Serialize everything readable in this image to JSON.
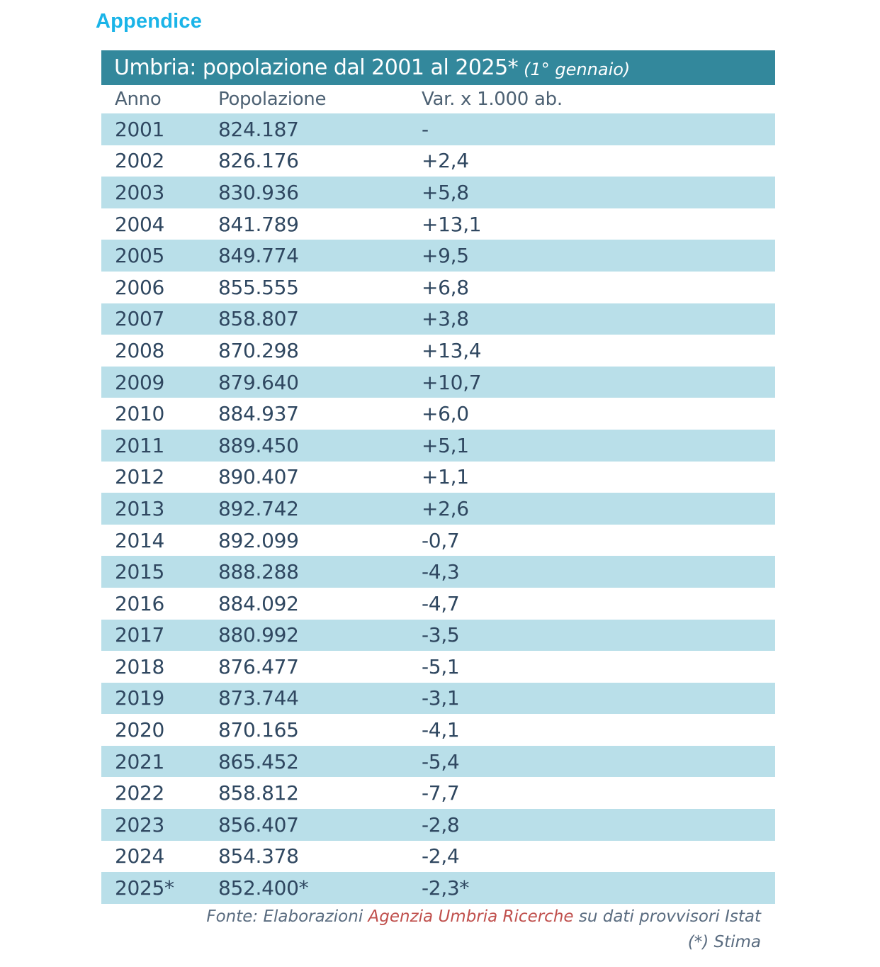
{
  "page": {
    "section_title": "Appendice"
  },
  "table": {
    "title": "Umbria: popolazione dal 2001 al 2025*",
    "title_note": "(1° gennaio)",
    "columns": [
      "Anno",
      "Popolazione",
      "Var. x 1.000 ab."
    ],
    "rows": [
      [
        "2001",
        "824.187",
        "-"
      ],
      [
        "2002",
        "826.176",
        "+2,4"
      ],
      [
        "2003",
        "830.936",
        "+5,8"
      ],
      [
        "2004",
        "841.789",
        "+13,1"
      ],
      [
        "2005",
        "849.774",
        "+9,5"
      ],
      [
        "2006",
        "855.555",
        "+6,8"
      ],
      [
        "2007",
        "858.807",
        "+3,8"
      ],
      [
        "2008",
        "870.298",
        "+13,4"
      ],
      [
        "2009",
        "879.640",
        "+10,7"
      ],
      [
        "2010",
        "884.937",
        "+6,0"
      ],
      [
        "2011",
        "889.450",
        "+5,1"
      ],
      [
        "2012",
        "890.407",
        "+1,1"
      ],
      [
        "2013",
        "892.742",
        "+2,6"
      ],
      [
        "2014",
        "892.099",
        "-0,7"
      ],
      [
        "2015",
        "888.288",
        "-4,3"
      ],
      [
        "2016",
        "884.092",
        "-4,7"
      ],
      [
        "2017",
        "880.992",
        "-3,5"
      ],
      [
        "2018",
        "876.477",
        "-5,1"
      ],
      [
        "2019",
        "873.744",
        "-3,1"
      ],
      [
        "2020",
        "870.165",
        "-4,1"
      ],
      [
        "2021",
        "865.452",
        "-5,4"
      ],
      [
        "2022",
        "858.812",
        "-7,7"
      ],
      [
        "2023",
        "856.407",
        "-2,8"
      ],
      [
        "2024",
        "854.378",
        "-2,4"
      ],
      [
        "2025*",
        "852.400*",
        "-2,3*"
      ]
    ]
  },
  "footnotes": {
    "source_prefix": "Fonte: Elaborazioni ",
    "source_agency": "Agenzia Umbria Ricerche",
    "source_suffix": " su dati provvisori Istat",
    "estimate": "(*) Stima"
  },
  "colors": {
    "section_title": "#1ab4e8",
    "header_bar": "#33889c",
    "shaded_row": "#b9dfe9",
    "text": "#2f4760",
    "agency_highlight": "#c0504d"
  }
}
